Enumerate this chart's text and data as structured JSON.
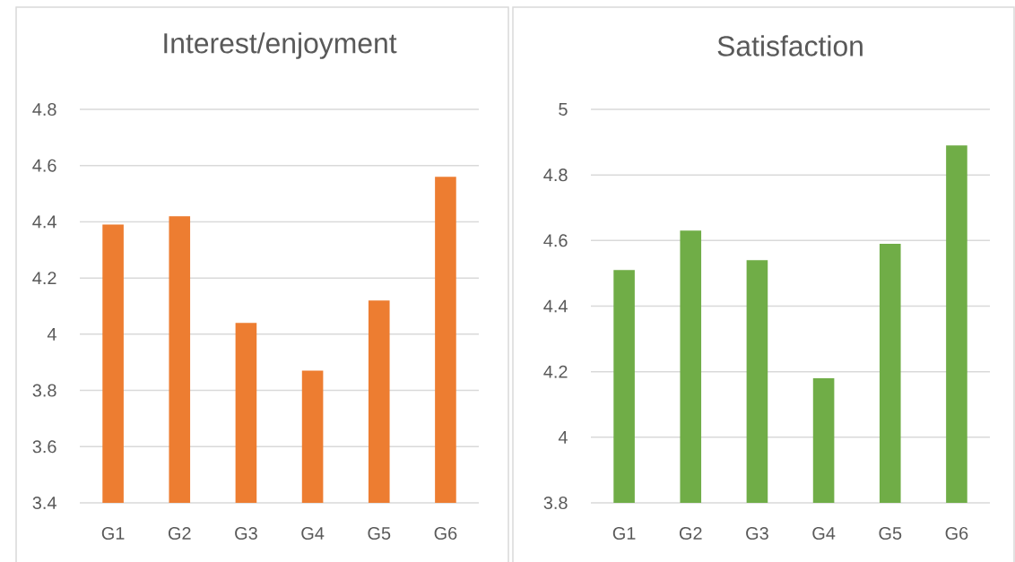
{
  "chart_data": [
    {
      "type": "bar",
      "title": "Interest/enjoyment",
      "categories": [
        "G1",
        "G2",
        "G3",
        "G4",
        "G5",
        "G6"
      ],
      "values": [
        4.39,
        4.42,
        4.04,
        3.87,
        4.12,
        4.56
      ],
      "color": "#ed7d31",
      "ylim": [
        3.4,
        4.8
      ],
      "yticks": [
        3.4,
        3.6,
        3.8,
        4,
        4.2,
        4.4,
        4.6,
        4.8
      ],
      "grid": "y"
    },
    {
      "type": "bar",
      "title": "Satisfaction",
      "categories": [
        "G1",
        "G2",
        "G3",
        "G4",
        "G5",
        "G6"
      ],
      "values": [
        4.51,
        4.63,
        4.54,
        4.18,
        4.59,
        4.89
      ],
      "color": "#70ad47",
      "ylim": [
        3.8,
        5
      ],
      "yticks": [
        3.8,
        4,
        4.2,
        4.4,
        4.6,
        4.8,
        5
      ],
      "grid": "y"
    }
  ]
}
